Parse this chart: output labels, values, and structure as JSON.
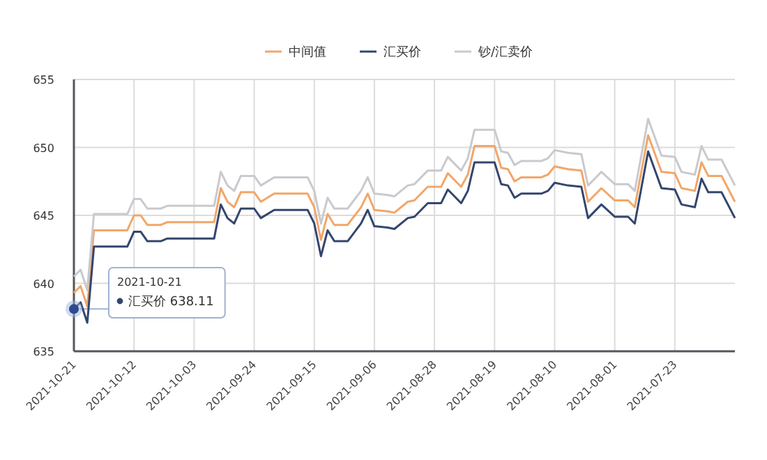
{
  "chart_data": {
    "type": "line",
    "legend": "top",
    "grid": true,
    "marker": "none",
    "line_style": "solid",
    "x": [
      "2021-10-21",
      "2021-10-20",
      "2021-10-19",
      "2021-10-18",
      "2021-10-13",
      "2021-10-12",
      "2021-10-11",
      "2021-10-10",
      "2021-10-08",
      "2021-10-07",
      "2021-09-30",
      "2021-09-29",
      "2021-09-28",
      "2021-09-27",
      "2021-09-26",
      "2021-09-24",
      "2021-09-23",
      "2021-09-21",
      "2021-09-16",
      "2021-09-15",
      "2021-09-14",
      "2021-09-13",
      "2021-09-12",
      "2021-09-10",
      "2021-09-08",
      "2021-09-07",
      "2021-09-06",
      "2021-09-04",
      "2021-09-03",
      "2021-09-01",
      "2021-08-31",
      "2021-08-29",
      "2021-08-27",
      "2021-08-26",
      "2021-08-24",
      "2021-08-23",
      "2021-08-22",
      "2021-08-19",
      "2021-08-18",
      "2021-08-17",
      "2021-08-16",
      "2021-08-15",
      "2021-08-12",
      "2021-08-11",
      "2021-08-10",
      "2021-08-08",
      "2021-08-06",
      "2021-08-05",
      "2021-08-03",
      "2021-08-01",
      "2021-07-30",
      "2021-07-29",
      "2021-07-27",
      "2021-07-25",
      "2021-07-23",
      "2021-07-22",
      "2021-07-20",
      "2021-07-19",
      "2021-07-18",
      "2021-07-16",
      "2021-07-14"
    ],
    "xlim": [
      "2021-10-21",
      "2021-07-14"
    ],
    "xticks": [
      "2021-10-21",
      "2021-10-12",
      "2021-10-03",
      "2021-09-24",
      "2021-09-15",
      "2021-09-06",
      "2021-08-28",
      "2021-08-19",
      "2021-08-10",
      "2021-08-01",
      "2021-07-23"
    ],
    "ylim": [
      635,
      655
    ],
    "yticks": [
      635,
      640,
      645,
      650,
      655
    ],
    "series": [
      {
        "name": "中间值",
        "color": "#f2a66a",
        "values": [
          639.3,
          639.8,
          638.3,
          643.9,
          643.9,
          645.0,
          645.0,
          644.3,
          644.3,
          644.5,
          644.5,
          647.0,
          646.0,
          645.6,
          646.7,
          646.7,
          646.0,
          646.6,
          646.6,
          645.6,
          643.2,
          645.1,
          644.3,
          644.3,
          645.6,
          646.6,
          645.4,
          645.3,
          645.2,
          646.0,
          646.1,
          647.1,
          647.1,
          648.1,
          647.1,
          648.0,
          650.1,
          650.1,
          648.5,
          648.4,
          647.5,
          647.8,
          647.8,
          648.0,
          648.6,
          648.4,
          648.3,
          646.0,
          647.0,
          646.1,
          646.1,
          645.6,
          650.9,
          648.2,
          648.1,
          647.0,
          646.8,
          648.9,
          647.9,
          647.9,
          646.0
        ]
      },
      {
        "name": "汇买价",
        "color": "#34466e",
        "values": [
          638.11,
          638.6,
          637.1,
          642.7,
          642.7,
          643.8,
          643.8,
          643.1,
          643.1,
          643.3,
          643.3,
          645.8,
          644.8,
          644.4,
          645.5,
          645.5,
          644.8,
          645.4,
          645.4,
          644.4,
          642.0,
          643.9,
          643.1,
          643.1,
          644.4,
          645.4,
          644.2,
          644.1,
          644.0,
          644.8,
          644.9,
          645.9,
          645.9,
          646.9,
          645.9,
          646.8,
          648.9,
          648.9,
          647.3,
          647.2,
          646.3,
          646.6,
          646.6,
          646.8,
          647.4,
          647.2,
          647.1,
          644.8,
          645.8,
          644.9,
          644.9,
          644.4,
          649.7,
          647.0,
          646.9,
          645.8,
          645.6,
          647.7,
          646.7,
          646.7,
          644.8
        ]
      },
      {
        "name": "钞/汇卖价",
        "color": "#c9c9cf",
        "values": [
          640.5,
          641.0,
          639.5,
          645.1,
          645.1,
          646.2,
          646.2,
          645.5,
          645.5,
          645.7,
          645.7,
          648.2,
          647.2,
          646.8,
          647.9,
          647.9,
          647.2,
          647.8,
          647.8,
          646.8,
          644.4,
          646.3,
          645.5,
          645.5,
          646.8,
          647.8,
          646.6,
          646.5,
          646.4,
          647.2,
          647.3,
          648.3,
          648.3,
          649.3,
          648.3,
          649.2,
          651.3,
          651.3,
          649.7,
          649.6,
          648.7,
          649.0,
          649.0,
          649.2,
          649.8,
          649.6,
          649.5,
          647.2,
          648.2,
          647.3,
          647.3,
          646.8,
          652.1,
          649.4,
          649.3,
          648.2,
          648.0,
          650.1,
          649.1,
          649.1,
          647.2
        ]
      }
    ],
    "annotations": [
      {
        "text": "2021-10-21\n汇买价  638.11",
        "x": "2021-10-21",
        "y": 638.11
      }
    ]
  }
}
